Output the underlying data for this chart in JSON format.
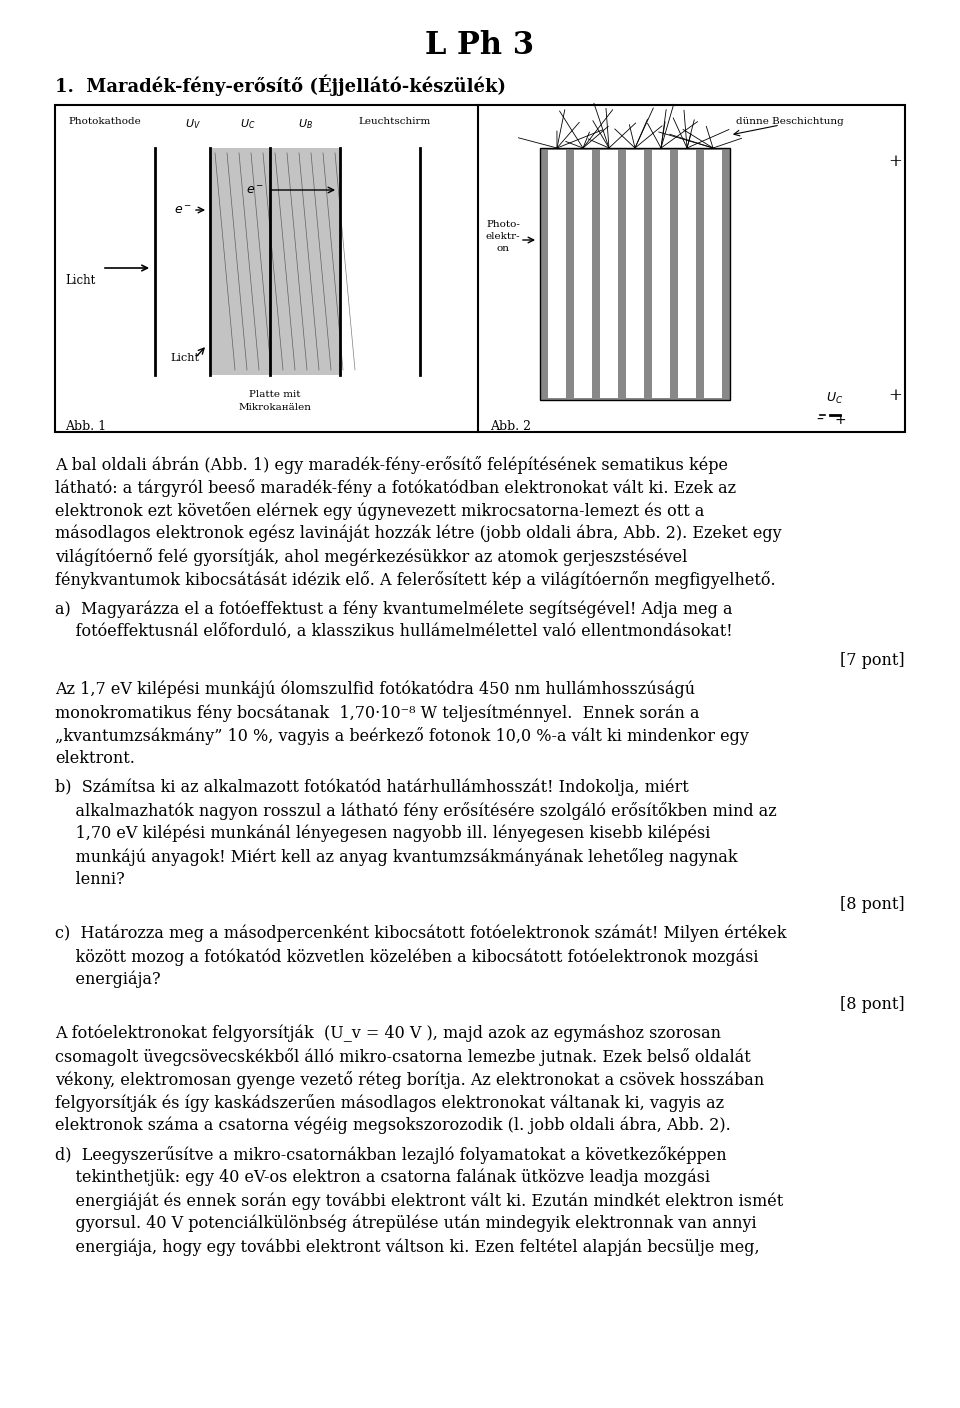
{
  "title": "L Ph 3",
  "section1_title": "1.  Maradék-fény-erősítő (Éjjellátó-készülék)",
  "background_color": "#ffffff",
  "text_color": "#000000",
  "para1_lines": [
    "A bal oldali ábrán (Abb. 1) egy maradék-fény-erősítő felépítésének sematikus képe",
    "látható: a tárgyról beeső maradék-fény a fotókatódban elektronokat vált ki. Ezek az",
    "elektronok ezt követően elérnek egy úgynevezett mikrocsatorna-lemezt és ott a",
    "másodlagos elektronok egész lavináját hozzák létre (jobb oldali ábra, Abb. 2). Ezeket egy",
    "világítóernő felé gyorsítják, ahol megérkezésükkor az atomok gerjeszstésével",
    "fénykvantumok kibocsátását idézik elő. A felerősített kép a világítóernőn megfigyelhető."
  ],
  "a_lines": [
    "a)  Magyarázza el a fotóeffektust a fény kvantumelmélete segítségével! Adja meg a",
    "    fotóeffektusnál előforduló, a klasszikus hullámelmélettel való ellentmondásokat!"
  ],
  "pont7": "[7 pont]",
  "phys_lines": [
    "Az 1,7 eV kilépési munkájú ólomszulfid fotókatódra 450 nm hullámhosszúságú",
    "monokromatikus fény bocsátanak  1,70·10⁻⁸ W teljesítménnyel.  Ennek során a",
    "„kvantumzsákmány” 10 %, vagyis a beérkező fotonok 10,0 %-a vált ki mindenkor egy",
    "elektront."
  ],
  "b_lines": [
    "b)  Számítsa ki az alkalmazott fotókatód határhullámhosszát! Indokolja, miért",
    "    alkalmazhatók nagyon rosszul a látható fény erősítésére szolgáló erősítőkben mind az",
    "    1,70 eV kilépési munkánál lényegesen nagyobb ill. lényegesen kisebb kilépési",
    "    munkájú anyagok! Miért kell az anyag kvantumzsákmányának lehetőleg nagynak",
    "    lenni?"
  ],
  "pont8b": "[8 pont]",
  "c_lines": [
    "c)  Határozza meg a másodpercenként kibocsátott fotóelektronok számát! Milyen értékek",
    "    között mozog a fotókatód közvetlen közelében a kibocsátott fotóelektronok mozgási",
    "    energiája?"
  ],
  "pont8c": "[8 pont]",
  "d_intro_lines": [
    "A fotóelektronokat felgyorsítják  (U_v = 40 V ), majd azok az egymáshoz szorosan",
    "csomagolt üvegcsövecskékből álló mikro-csatorna lemezbe jutnak. Ezek belső oldalát",
    "vékony, elektromosan gyenge vezető réteg borítja. Az elektronokat a csövek hosszában",
    "felgyorsítják és így kaskádszerűen másodlagos elektronokat váltanak ki, vagyis az",
    "elektronok száma a csatorna végéig megsokszorozodik (l. jobb oldali ábra, Abb. 2)."
  ],
  "d_lines": [
    "d)  Leegyszerűsítve a mikro-csatornákban lezajló folyamatokat a következőképpen",
    "    tekinthetjük: egy 40 eV-os elektron a csatorna falának ütközve leadja mozgási",
    "    energiáját és ennek során egy további elektront vált ki. Ezután mindkét elektron ismét",
    "    gyorsul. 40 V potenciálkülönbség átrepülése után mindegyik elektronnak van annyi",
    "    energiája, hogy egy további elektront váltson ki. Ezen feltétel alapján becsülje meg,"
  ]
}
